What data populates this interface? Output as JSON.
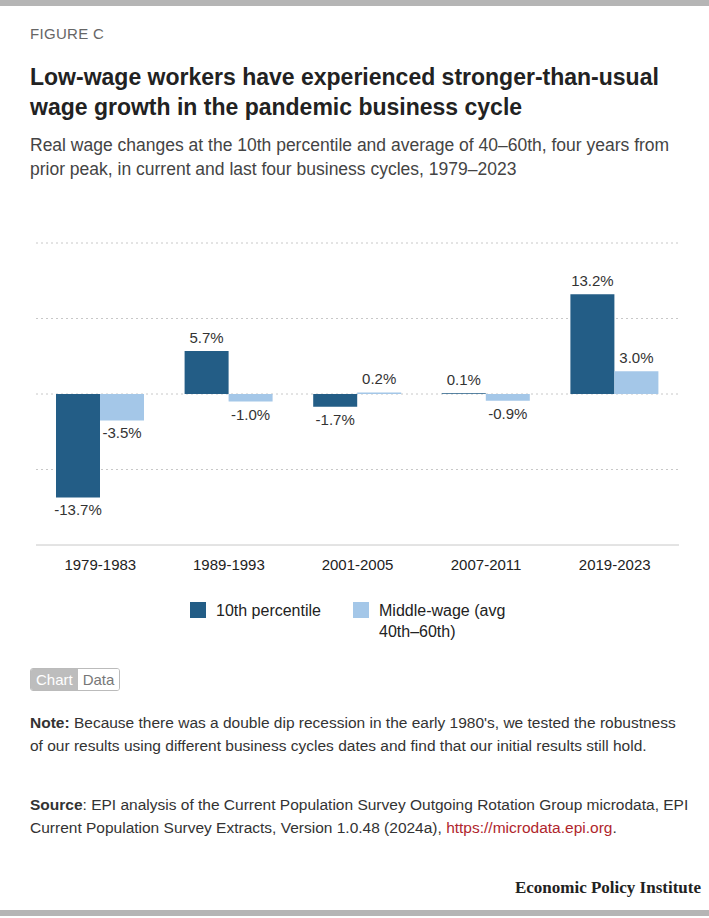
{
  "chart_data": {
    "type": "bar",
    "title": "Low-wage workers have experienced stronger-than-usual wage growth in the pandemic business cycle",
    "subtitle": "Real wage changes at the 10th percentile and average of 40–60th, four years from prior peak, in current and last four business cycles, 1979–2023",
    "categories": [
      "1979-1983",
      "1989-1993",
      "2001-2005",
      "2007-2011",
      "2019-2023"
    ],
    "series": [
      {
        "name": "10th percentile",
        "color": "#235d86",
        "values": [
          -13.7,
          5.7,
          -1.7,
          0.1,
          13.2
        ],
        "value_labels": [
          "-13.7%",
          "5.7%",
          "-1.7%",
          "0.1%",
          "13.2%"
        ]
      },
      {
        "name": "Middle-wage (avg 40th–60th)",
        "color": "#a4c7e8",
        "values": [
          -3.5,
          -1.0,
          0.2,
          -0.9,
          3.0
        ],
        "value_labels": [
          "-3.5%",
          "-1.0%",
          "0.2%",
          "-0.9%",
          "3.0%"
        ]
      }
    ],
    "ylim": [
      -20,
      20
    ],
    "yticks": [
      -10,
      0,
      10,
      20
    ],
    "grid": true,
    "data_labels": true,
    "legend": "bottom",
    "tick_labels": "x"
  },
  "figure_label": "FIGURE C",
  "tabs": [
    "Chart",
    "Data"
  ],
  "note_label": "Note:",
  "note": "Because there was a double dip recession in the early 1980's, we tested the robustness of our results using different business cycles dates and find that our initial results still hold.",
  "source_label": "Source",
  "source": ": EPI analysis of the Current Population Survey Outgoing Rotation Group microdata, EPI Current Population Survey Extracts, Version 1.0.48 (2024a), ",
  "source_link": "https://microdata.epi.org",
  "source_end": ".",
  "publisher": "Economic Policy Institute"
}
